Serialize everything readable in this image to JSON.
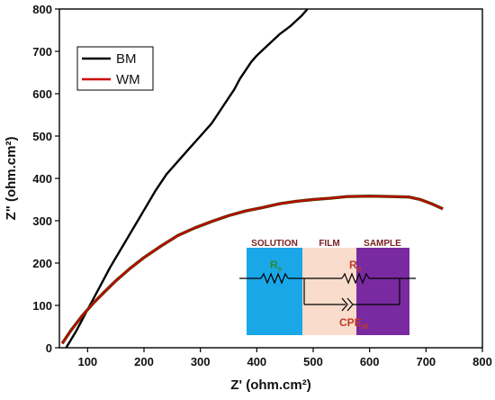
{
  "chart_data": {
    "type": "line",
    "title": "",
    "xlabel": "Z' (ohm.cm²)",
    "ylabel": "Z\" (ohm.cm²)",
    "xlim": [
      50,
      800
    ],
    "ylim": [
      0,
      800
    ],
    "xticks": [
      100,
      200,
      300,
      400,
      500,
      600,
      700,
      800
    ],
    "yticks": [
      0,
      100,
      200,
      300,
      400,
      500,
      600,
      700,
      800
    ],
    "grid": false,
    "legend_position": "top-left",
    "series": [
      {
        "name": "BM",
        "color": "#000000",
        "x": [
          62,
          80,
          100,
          120,
          140,
          160,
          180,
          200,
          220,
          240,
          260,
          280,
          300,
          320,
          330,
          340,
          350,
          360,
          370,
          380,
          390,
          400,
          420,
          440,
          460,
          480,
          490
        ],
        "y": [
          0,
          40,
          90,
          140,
          190,
          235,
          280,
          325,
          370,
          410,
          440,
          470,
          500,
          530,
          550,
          570,
          590,
          610,
          635,
          655,
          675,
          690,
          715,
          740,
          760,
          785,
          800
        ]
      },
      {
        "name": "WM",
        "color": "#d00000",
        "x": [
          55,
          70,
          90,
          110,
          130,
          150,
          175,
          200,
          230,
          260,
          290,
          320,
          350,
          380,
          410,
          440,
          470,
          500,
          530,
          560,
          600,
          640,
          670,
          690,
          710,
          730
        ],
        "y": [
          10,
          40,
          75,
          105,
          132,
          158,
          187,
          213,
          240,
          265,
          283,
          298,
          312,
          323,
          331,
          340,
          346,
          350,
          353,
          357,
          358,
          357,
          356,
          350,
          340,
          328
        ]
      }
    ],
    "inset": {
      "sections": [
        "SOLUTION",
        "FILM",
        "SAMPLE"
      ],
      "components": {
        "r_main": "R",
        "r_sub": "s",
        "rp_main": "R",
        "rp_sub": "p",
        "cpe_main": "CPE",
        "cpe_sub": "dl"
      },
      "colors": {
        "solution": "#1aa7e8",
        "film": "#f9dccb",
        "sample": "#7a2aa0",
        "rs_label": "#2e8b2e",
        "rp_label": "#c0392b",
        "cpe_label": "#c0392b"
      }
    }
  }
}
